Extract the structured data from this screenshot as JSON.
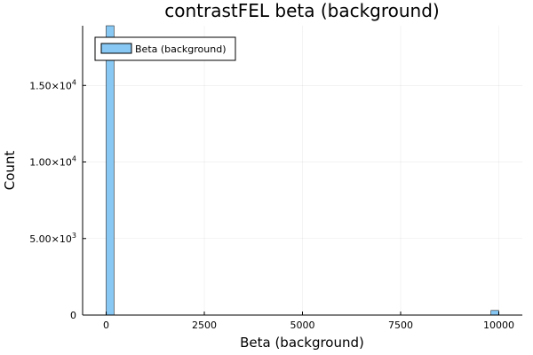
{
  "chart_data": {
    "type": "bar",
    "title": "contrastFEL beta (background)",
    "xlabel": "Beta (background)",
    "ylabel": "Count",
    "xlim": [
      -600,
      10600
    ],
    "ylim": [
      0,
      18900
    ],
    "xticks": [
      {
        "value": 0,
        "label": "0"
      },
      {
        "value": 2500,
        "label": "2500"
      },
      {
        "value": 5000,
        "label": "5000"
      },
      {
        "value": 7500,
        "label": "7500"
      },
      {
        "value": 10000,
        "label": "10000"
      }
    ],
    "yticks": [
      {
        "value": 0,
        "mant": "0",
        "exp": ""
      },
      {
        "value": 5000,
        "mant": "5.00×10",
        "exp": "3"
      },
      {
        "value": 10000,
        "mant": "1.00×10",
        "exp": "4"
      },
      {
        "value": 15000,
        "mant": "1.50×10",
        "exp": "4"
      }
    ],
    "grid": true,
    "legend_position": "top-left",
    "series": [
      {
        "name": "Beta (background)",
        "color": "#87c8f5",
        "bins": [
          {
            "x0": 0,
            "x1": 200,
            "count": 19000
          },
          {
            "x0": 9800,
            "x1": 10000,
            "count": 300
          }
        ]
      }
    ]
  }
}
